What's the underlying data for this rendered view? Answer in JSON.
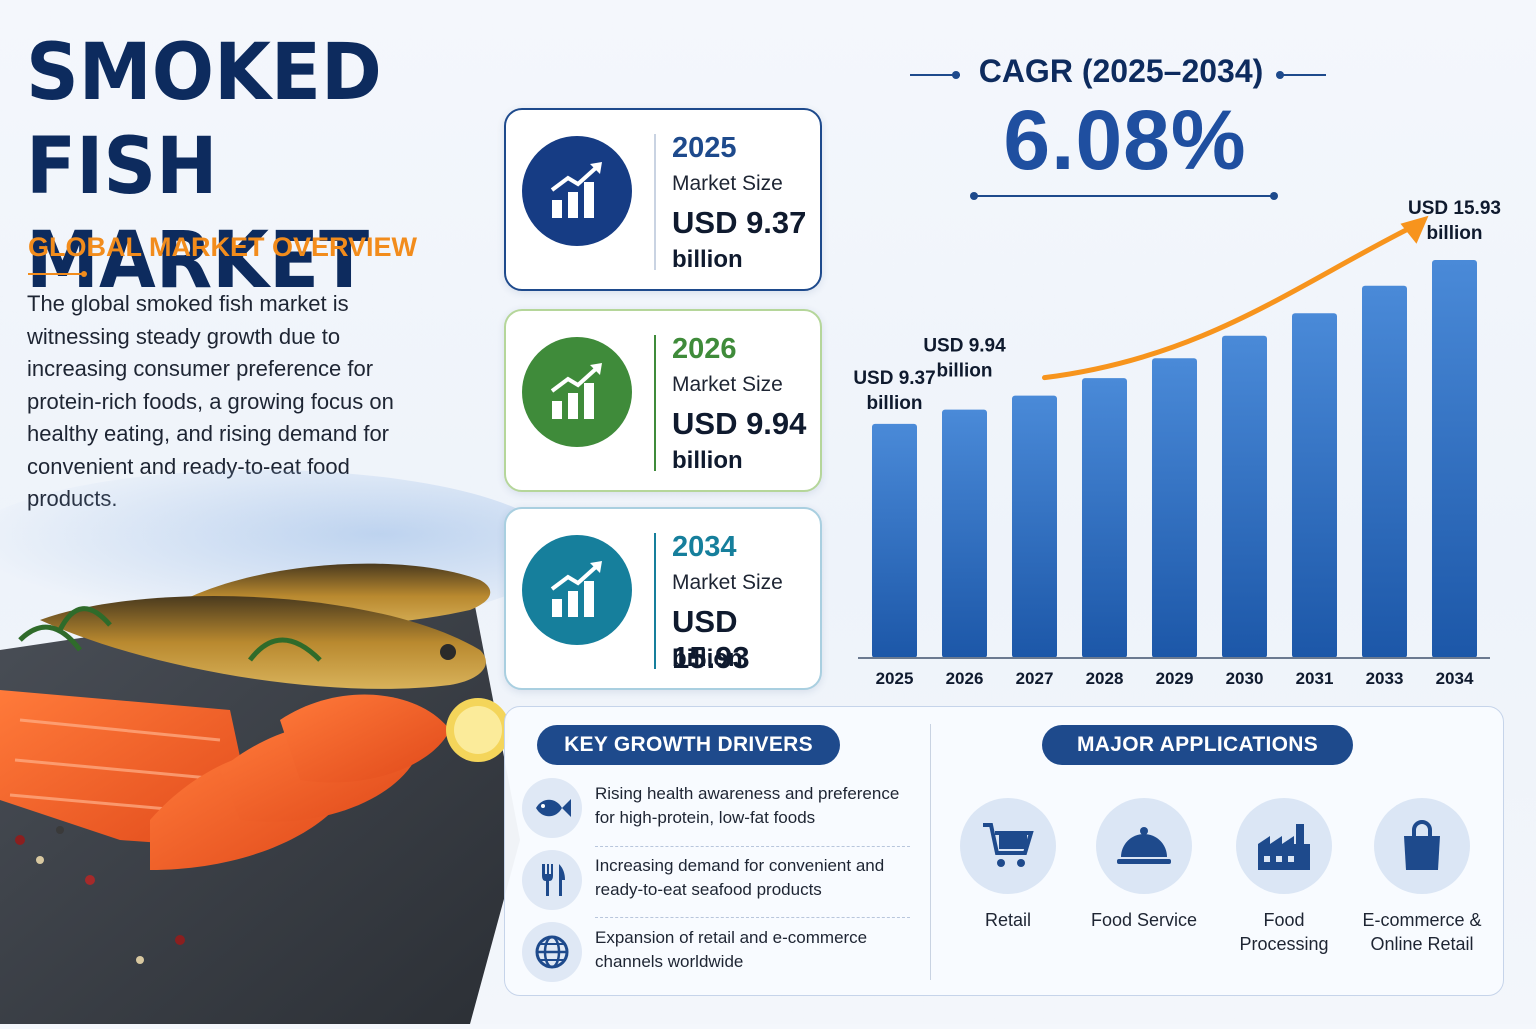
{
  "header": {
    "title": "SMOKED FISH MARKET",
    "subtitle": "GLOBAL MARKET OVERVIEW",
    "description": "The global smoked fish market is witnessing steady growth due to increasing consumer preference for protein-rich foods, a growing focus on healthy eating, and rising demand for convenient and ready-to-eat food products."
  },
  "stats": [
    {
      "year": "2025",
      "label": "Market Size",
      "value": "USD 9.37",
      "unit": "billion",
      "icon": "growth-chart-icon",
      "color": "#163c84"
    },
    {
      "year": "2026",
      "label": "Market Size",
      "value": "USD 9.94",
      "unit": "billion",
      "icon": "growth-chart-icon",
      "color": "#3f8b3a"
    },
    {
      "year": "2034",
      "label": "Market Size",
      "value": "USD 15.93",
      "unit": "billion",
      "icon": "growth-chart-icon",
      "color": "#167f9c"
    }
  ],
  "cagr": {
    "label": "CAGR (2025–2034)",
    "value": "6.08%"
  },
  "chart_data": {
    "type": "bar",
    "categories": [
      "2025",
      "2026",
      "2027",
      "2028",
      "2029",
      "2030",
      "2031",
      "2033",
      "2034"
    ],
    "values": [
      9.37,
      9.94,
      10.5,
      11.2,
      12.0,
      12.9,
      13.8,
      14.9,
      15.93
    ],
    "data_labels": [
      {
        "index": 0,
        "line1": "USD 9.37",
        "line2": "billion"
      },
      {
        "index": 1,
        "line1": "USD 9.94",
        "line2": "billion"
      },
      {
        "index": 8,
        "line1": "USD 15.93",
        "line2": "billion"
      }
    ],
    "title": "",
    "xlabel": "",
    "ylabel": "",
    "trend_arrow": true,
    "bar_color": "#2d6bbb",
    "arrow_color": "#f7941d"
  },
  "drivers": {
    "title": "KEY GROWTH DRIVERS",
    "items": [
      {
        "text": "Rising health awareness and preference for high-protein, low-fat foods",
        "icon": "fish-icon"
      },
      {
        "text": "Increasing demand for convenient and ready-to-eat seafood products",
        "icon": "fork-knife-icon"
      },
      {
        "text": "Expansion of retail and e-commerce channels worldwide",
        "icon": "globe-icon"
      }
    ]
  },
  "applications": {
    "title": "MAJOR APPLICATIONS",
    "items": [
      {
        "label": "Retail",
        "icon": "shopping-cart-icon"
      },
      {
        "label": "Food Service",
        "icon": "cloche-icon"
      },
      {
        "label": "Food Processing",
        "icon": "factory-icon"
      },
      {
        "label": "E-commerce & Online Retail",
        "icon": "shopping-bag-icon"
      }
    ]
  },
  "colors": {
    "navy": "#0d2b5e",
    "accent_orange": "#f28c1c",
    "blue": "#1e4a8c"
  }
}
